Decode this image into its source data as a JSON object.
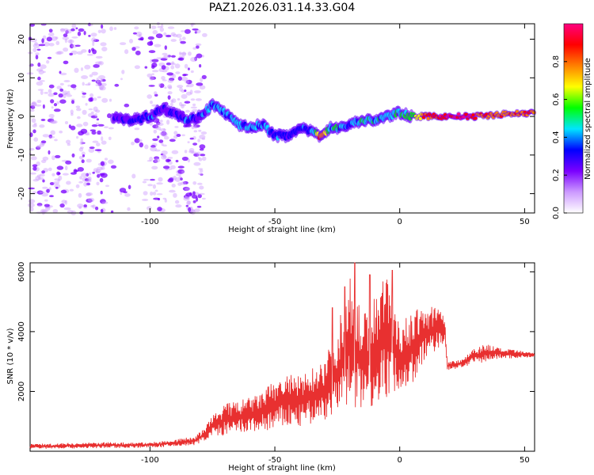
{
  "title": "PAZ1.2026.031.14.33.G04",
  "chart_data": [
    {
      "type": "heatmap",
      "name": "spectrogram",
      "xlabel": "Height of straight line (km)",
      "ylabel": "Frequency (Hz)",
      "xlim": [
        -148,
        54
      ],
      "ylim": [
        -25,
        24
      ],
      "x_ticks": [
        -100,
        -50,
        0,
        50
      ],
      "y_ticks": [
        -20,
        -10,
        0,
        10,
        20
      ],
      "x_tick_labels": [
        "-100",
        "-50",
        "0",
        "50"
      ],
      "y_tick_labels": [
        "-20",
        "-10",
        "0",
        "10",
        "20"
      ],
      "ridge": {
        "x": [
          -115,
          -108,
          -100,
          -95,
          -90,
          -85,
          -80,
          -75,
          -70,
          -65,
          -60,
          -55,
          -50,
          -45,
          -40,
          -35,
          -32,
          -28,
          -24,
          -20,
          -15,
          -10,
          -5,
          0,
          5,
          10,
          20,
          30,
          40,
          54
        ],
        "freq": [
          0,
          -1,
          0,
          2,
          1,
          -1,
          0,
          3,
          1,
          -2,
          -3,
          -2,
          -5,
          -5,
          -3,
          -4,
          -5,
          -3,
          -3,
          -2,
          -1,
          -1,
          0,
          1,
          0,
          0,
          0,
          0,
          0.5,
          1
        ],
        "amplitude": [
          0.2,
          0.3,
          0.35,
          0.3,
          0.3,
          0.35,
          0.3,
          0.4,
          0.4,
          0.45,
          0.4,
          0.4,
          0.35,
          0.3,
          0.35,
          0.4,
          0.85,
          0.45,
          0.45,
          0.4,
          0.45,
          0.45,
          0.45,
          0.45,
          0.55,
          0.8,
          0.95,
          0.9,
          0.8,
          0.8
        ]
      },
      "colorbar": {
        "label": "Normalized spectral amplitude",
        "range": [
          0,
          1
        ],
        "ticks": [
          0,
          0.2,
          0.4,
          0.6,
          0.8
        ],
        "tick_labels": [
          "0.0",
          "0.2",
          "0.4",
          "0.6",
          "0.8"
        ],
        "colors": [
          "#ffffff",
          "#cc99ff",
          "#7a00ff",
          "#0000ff",
          "#00e5ff",
          "#00ff00",
          "#ffff00",
          "#ff8000",
          "#ff0000",
          "#ff0080"
        ]
      }
    },
    {
      "type": "line",
      "name": "snr",
      "xlabel": "Height of straight line (km)",
      "ylabel": "SNR (10 * v/v)",
      "xlim": [
        -148,
        54
      ],
      "ylim": [
        0,
        6300
      ],
      "x_ticks": [
        -100,
        -50,
        0,
        50
      ],
      "y_ticks": [
        2000,
        4000,
        6000
      ],
      "x_tick_labels": [
        "-100",
        "-50",
        "0",
        "50"
      ],
      "y_tick_labels": [
        "2000",
        "4000",
        "6000"
      ],
      "color": "#e83030",
      "envelope": {
        "x": [
          -148,
          -120,
          -100,
          -90,
          -82,
          -78,
          -75,
          -70,
          -65,
          -60,
          -55,
          -50,
          -45,
          -40,
          -35,
          -30,
          -25,
          -20,
          -15,
          -10,
          -5,
          0,
          5,
          10,
          15,
          18,
          19,
          25,
          30,
          35,
          40,
          45,
          54
        ],
        "low": [
          80,
          100,
          120,
          150,
          200,
          350,
          500,
          500,
          550,
          600,
          650,
          700,
          800,
          800,
          900,
          1000,
          1200,
          1200,
          1500,
          1500,
          1800,
          2000,
          2200,
          3000,
          3400,
          3600,
          2700,
          2800,
          2900,
          3000,
          3100,
          3100,
          3150
        ],
        "high": [
          250,
          300,
          300,
          400,
          500,
          800,
          1200,
          1600,
          1700,
          1800,
          2000,
          2400,
          2600,
          2500,
          2800,
          3200,
          4000,
          6200,
          4500,
          5300,
          6000,
          4200,
          4700,
          4800,
          4900,
          4600,
          3000,
          3100,
          3500,
          3600,
          3450,
          3400,
          3300
        ]
      },
      "spikes": [
        {
          "x": -27,
          "value": 4800
        },
        {
          "x": -22,
          "value": 5500
        },
        {
          "x": -18,
          "value": 6300
        },
        {
          "x": -12,
          "value": 5900
        },
        {
          "x": -3,
          "value": 6050
        }
      ]
    }
  ]
}
